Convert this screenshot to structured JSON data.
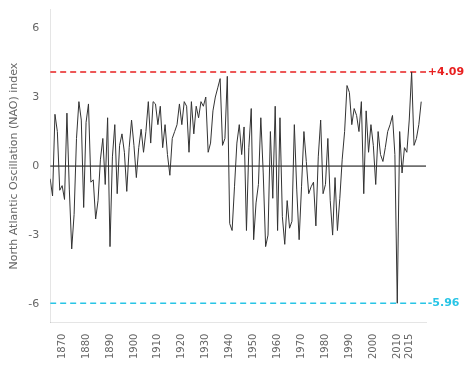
{
  "chart_data": {
    "type": "line",
    "ylabel": "North Atlantic Oscillation (NAO) index",
    "x": [
      1865,
      1866,
      1867,
      1868,
      1869,
      1870,
      1871,
      1872,
      1873,
      1874,
      1875,
      1876,
      1877,
      1878,
      1879,
      1880,
      1881,
      1882,
      1883,
      1884,
      1885,
      1886,
      1887,
      1888,
      1889,
      1890,
      1891,
      1892,
      1893,
      1894,
      1895,
      1896,
      1897,
      1898,
      1899,
      1900,
      1901,
      1902,
      1903,
      1904,
      1905,
      1906,
      1907,
      1908,
      1909,
      1910,
      1911,
      1912,
      1913,
      1914,
      1915,
      1916,
      1917,
      1918,
      1919,
      1920,
      1921,
      1922,
      1923,
      1924,
      1925,
      1926,
      1927,
      1928,
      1929,
      1930,
      1931,
      1932,
      1933,
      1934,
      1935,
      1936,
      1937,
      1938,
      1939,
      1940,
      1941,
      1942,
      1943,
      1944,
      1945,
      1946,
      1947,
      1948,
      1949,
      1950,
      1951,
      1952,
      1953,
      1954,
      1955,
      1956,
      1957,
      1958,
      1959,
      1960,
      1961,
      1962,
      1963,
      1964,
      1965,
      1966,
      1967,
      1968,
      1969,
      1970,
      1971,
      1972,
      1973,
      1974,
      1975,
      1976,
      1977,
      1978,
      1979,
      1980,
      1981,
      1982,
      1983,
      1984,
      1985,
      1986,
      1987,
      1988,
      1989,
      1990,
      1991,
      1992,
      1993,
      1994,
      1995,
      1996,
      1997,
      1998,
      1999,
      2000,
      2001,
      2002,
      2003,
      2004,
      2005,
      2006,
      2007,
      2008,
      2009,
      2010,
      2011,
      2012,
      2013,
      2014,
      2015,
      2016,
      2017,
      2018,
      2019,
      2020
    ],
    "values": [
      -0.55,
      -1.3,
      2.25,
      1.5,
      -1.05,
      -0.85,
      -1.45,
      2.3,
      -1.0,
      -3.6,
      -2.1,
      1.2,
      2.8,
      2.0,
      -1.8,
      1.9,
      2.7,
      -0.7,
      -0.6,
      -2.3,
      -1.5,
      0.3,
      1.2,
      -0.8,
      2.1,
      -3.5,
      0.4,
      1.8,
      -1.2,
      0.9,
      1.4,
      0.6,
      -1.1,
      0.8,
      2.0,
      0.9,
      -0.5,
      0.8,
      1.6,
      0.6,
      1.5,
      2.8,
      1.0,
      2.8,
      2.7,
      1.8,
      2.6,
      0.8,
      1.8,
      0.5,
      -0.4,
      1.2,
      1.5,
      1.8,
      2.7,
      1.8,
      2.8,
      2.6,
      0.6,
      2.8,
      1.4,
      2.6,
      2.1,
      2.8,
      2.6,
      3.0,
      0.6,
      1.0,
      2.4,
      3.0,
      3.4,
      3.8,
      0.9,
      1.2,
      3.9,
      -2.5,
      -2.8,
      -0.9,
      1.0,
      1.8,
      0.5,
      1.7,
      -2.8,
      0.8,
      2.5,
      -3.2,
      -1.6,
      -0.8,
      2.1,
      -0.3,
      -3.5,
      -3.0,
      1.5,
      -1.4,
      2.6,
      -2.8,
      2.1,
      -2.2,
      -3.4,
      -1.5,
      -2.7,
      -2.4,
      1.8,
      -1.0,
      -3.2,
      -0.9,
      1.5,
      0.2,
      -1.2,
      -0.9,
      -0.7,
      -2.6,
      0.4,
      2.0,
      -1.2,
      -0.8,
      1.2,
      -1.5,
      -3.0,
      -0.5,
      -2.8,
      -1.4,
      0.3,
      1.5,
      3.5,
      3.2,
      1.8,
      2.5,
      2.2,
      1.5,
      2.8,
      -1.2,
      2.4,
      0.6,
      1.8,
      0.9,
      -0.8,
      1.5,
      0.5,
      0.2,
      0.8,
      1.5,
      1.8,
      2.2,
      0.5,
      -5.96,
      1.5,
      -0.3,
      0.8,
      0.6,
      2.0,
      4.09,
      0.9,
      1.2,
      1.8,
      2.8
    ],
    "color": "#333333",
    "xlim": [
      1865,
      2022
    ],
    "ylim": [
      -6.8,
      6.8
    ],
    "xticks": [
      1870,
      1880,
      1890,
      1900,
      1910,
      1920,
      1930,
      1940,
      1950,
      1960,
      1970,
      1980,
      1990,
      2000,
      2010,
      2015
    ],
    "yticks": [
      -6,
      -3,
      0,
      3,
      6
    ],
    "grid": false,
    "hlines": [
      {
        "y": 0,
        "color": "#000000",
        "line_style": "solid"
      },
      {
        "y": 4.09,
        "color": "#e82020",
        "line_style": "dashed"
      },
      {
        "y": -5.96,
        "color": "#29c5e6",
        "line_style": "dashed"
      }
    ],
    "annotations": [
      {
        "text": "+4.09",
        "x": 2021.5,
        "y": 4.09,
        "color": "#e82020"
      },
      {
        "text": "-5.96",
        "x": 2021.5,
        "y": -5.96,
        "color": "#29c5e6"
      }
    ]
  }
}
